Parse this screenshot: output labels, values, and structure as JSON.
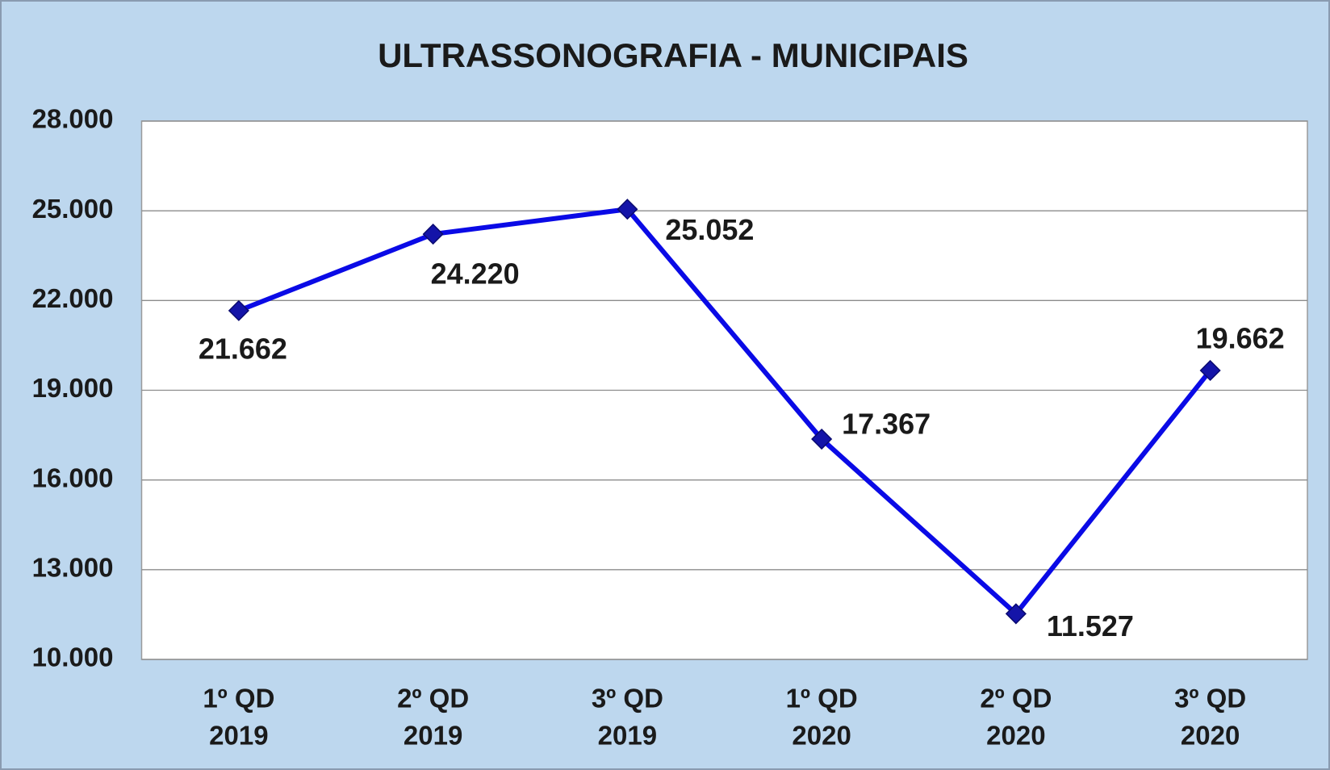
{
  "chart_data": {
    "type": "line",
    "title": "ULTRASSONOGRAFIA - MUNICIPAIS",
    "categories": [
      [
        "1º QD",
        "2019"
      ],
      [
        "2º QD",
        "2019"
      ],
      [
        "3º QD",
        "2019"
      ],
      [
        "1º QD",
        "2020"
      ],
      [
        "2º QD",
        "2020"
      ],
      [
        "3º QD",
        "2020"
      ]
    ],
    "series": [
      {
        "name": "Ultrassonografia",
        "color": "#0a0ae6",
        "marker_color": "#1414a8",
        "values": [
          21662,
          24220,
          25052,
          17367,
          11527,
          19662
        ],
        "value_labels": [
          "21.662",
          "24.220",
          "25.052",
          "17.367",
          "11.527",
          "19.662"
        ]
      }
    ],
    "ylim": [
      10000,
      28000
    ],
    "yticks": [
      {
        "value": 10000,
        "label": "10.000"
      },
      {
        "value": 13000,
        "label": "13.000"
      },
      {
        "value": 16000,
        "label": "16.000"
      },
      {
        "value": 19000,
        "label": "19.000"
      },
      {
        "value": 22000,
        "label": "22.000"
      },
      {
        "value": 25000,
        "label": "25.000"
      },
      {
        "value": 28000,
        "label": "28.000"
      }
    ],
    "grid": true
  }
}
